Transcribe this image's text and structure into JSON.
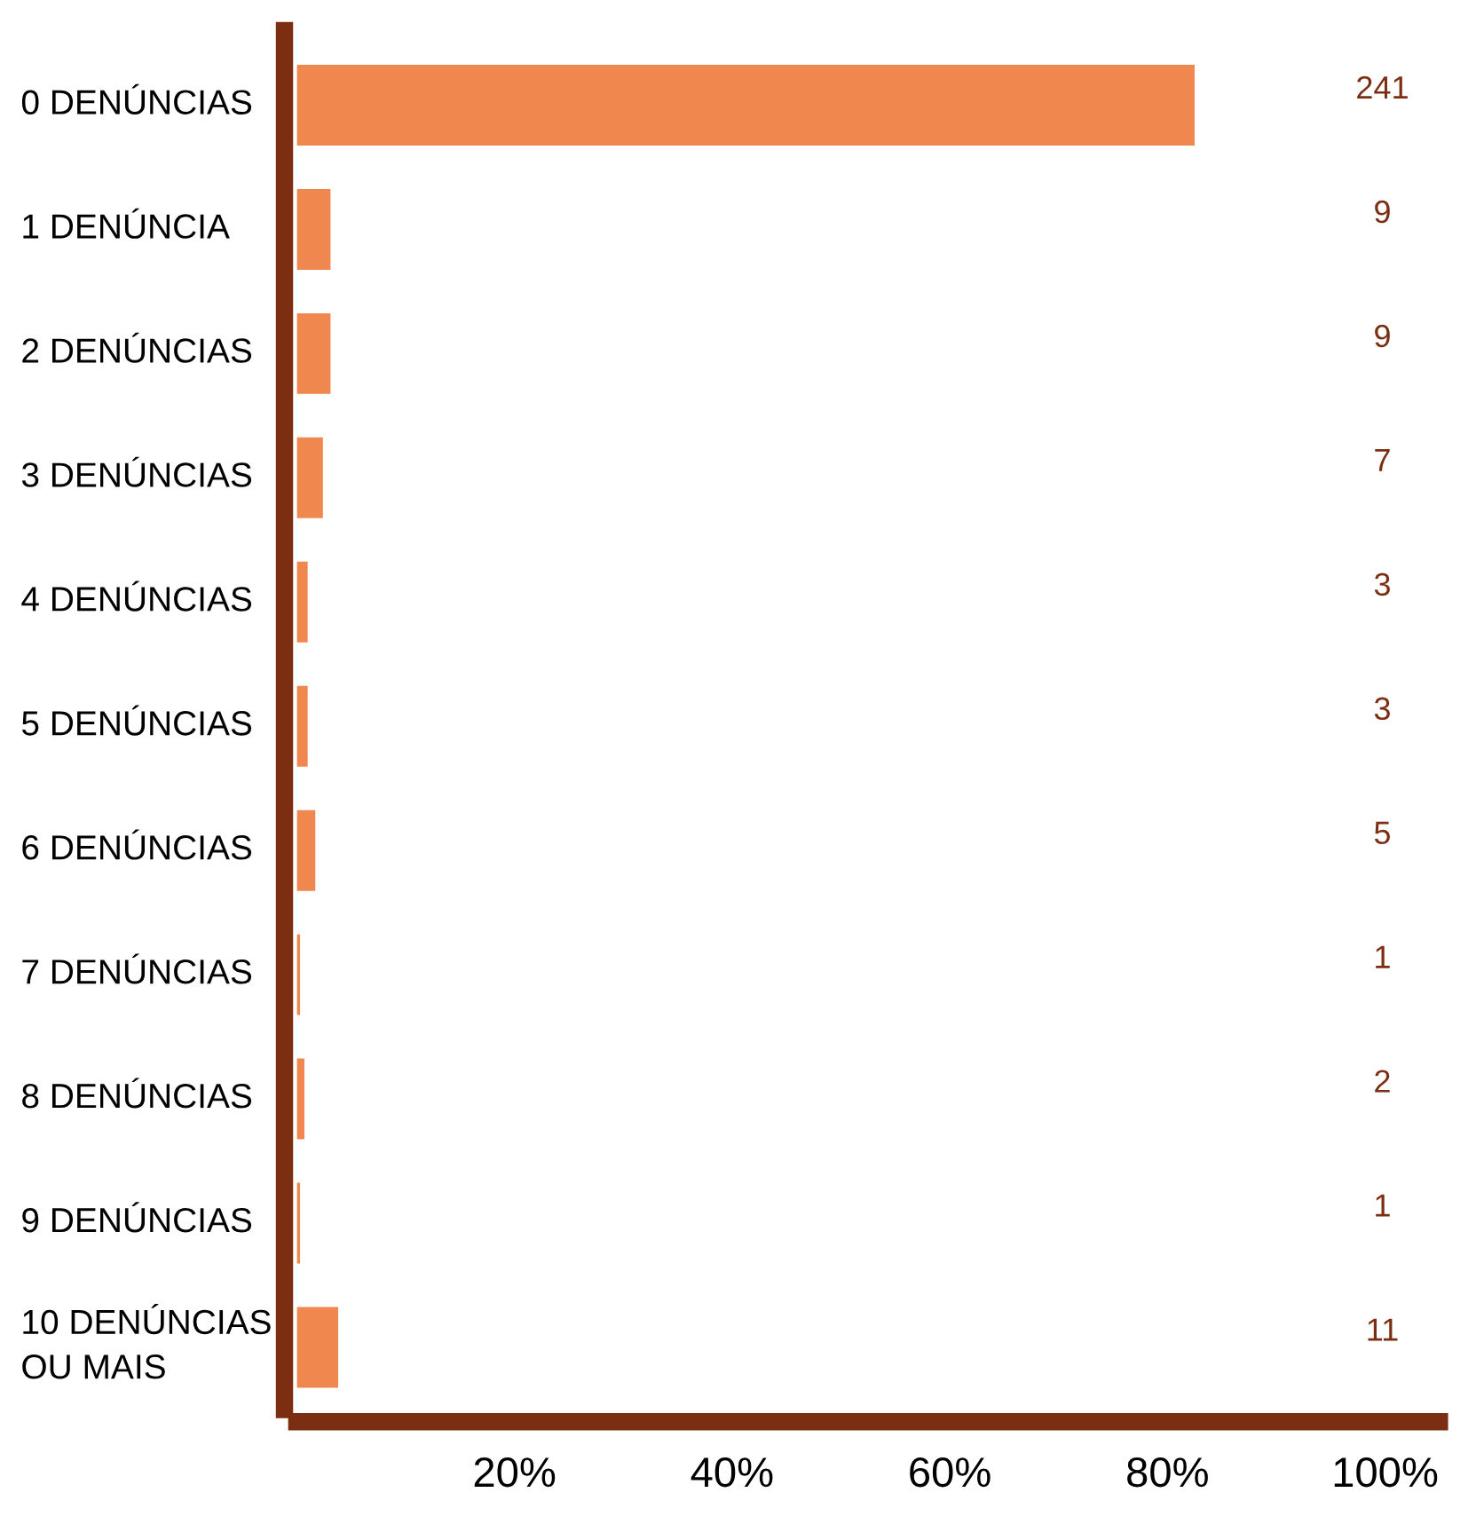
{
  "chart_data": {
    "type": "bar",
    "orientation": "horizontal",
    "categories": [
      "0 DENÚNCIAS",
      "1 DENÚNCIA",
      "2 DENÚNCIAS",
      "3 DENÚNCIAS",
      "4 DENÚNCIAS",
      "5 DENÚNCIAS",
      "6 DENÚNCIAS",
      "7 DENÚNCIAS",
      "8 DENÚNCIAS",
      "9 DENÚNCIAS",
      "10 DENÚNCIAS\nOU MAIS"
    ],
    "values": [
      82.5,
      3.1,
      3.1,
      2.4,
      1.0,
      1.0,
      1.7,
      0.3,
      0.7,
      0.3,
      3.8
    ],
    "annotations": [
      "241",
      "9",
      "9",
      "7",
      "3",
      "3",
      "5",
      "1",
      "2",
      "1",
      "11"
    ],
    "color": "#f0874f",
    "xlim": [
      0,
      105
    ],
    "xticks": [
      {
        "value": 20,
        "label": "20%"
      },
      {
        "value": 40,
        "label": "40%"
      },
      {
        "value": 60,
        "label": "60%"
      },
      {
        "value": 80,
        "label": "80%"
      },
      {
        "value": 100,
        "label": "100%"
      }
    ],
    "grid": false,
    "legend": false
  }
}
